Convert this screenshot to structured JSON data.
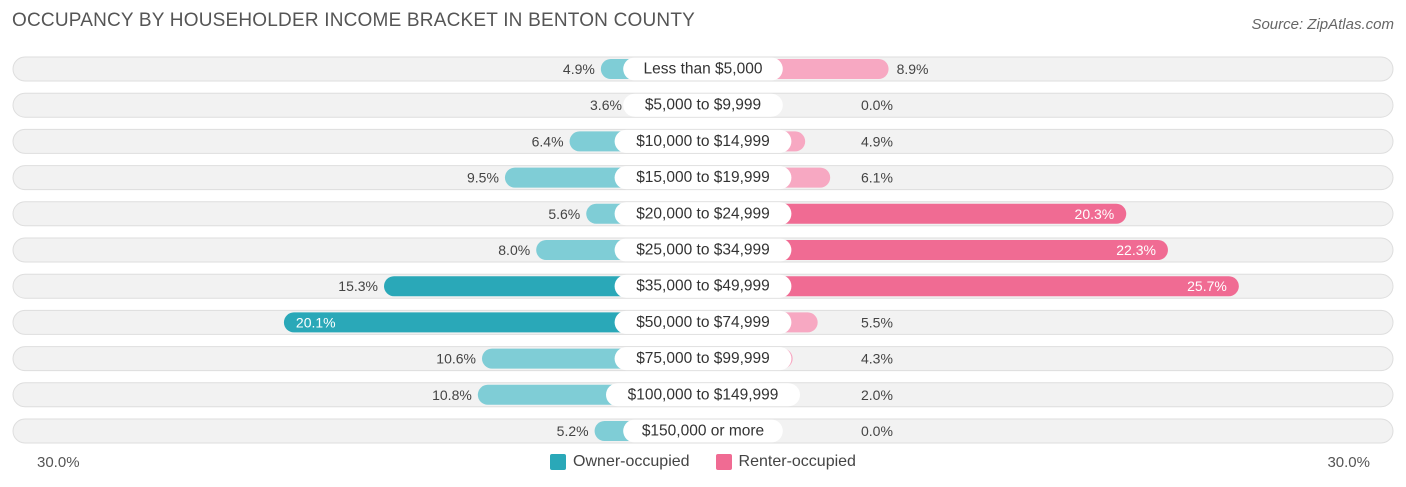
{
  "header": {
    "title": "OCCUPANCY BY HOUSEHOLDER INCOME BRACKET IN BENTON COUNTY",
    "source": "Source: ZipAtlas.com"
  },
  "colors": {
    "owner": "#2aa8b8",
    "owner_light": "#7fcdd6",
    "renter": "#f06b93",
    "renter_light": "#f7a8c2"
  },
  "chart_data": {
    "type": "bar",
    "orientation": "horizontal-diverging",
    "title": "OCCUPANCY BY HOUSEHOLDER INCOME BRACKET IN BENTON COUNTY",
    "categories": [
      "Less than $5,000",
      "$5,000 to $9,999",
      "$10,000 to $14,999",
      "$15,000 to $19,999",
      "$20,000 to $24,999",
      "$25,000 to $34,999",
      "$35,000 to $49,999",
      "$50,000 to $74,999",
      "$75,000 to $99,999",
      "$100,000 to $149,999",
      "$150,000 or more"
    ],
    "series": [
      {
        "name": "Owner-occupied",
        "values": [
          4.9,
          3.6,
          6.4,
          9.5,
          5.6,
          8.0,
          15.3,
          20.1,
          10.6,
          10.8,
          5.2
        ],
        "labels": [
          "4.9%",
          "3.6%",
          "6.4%",
          "9.5%",
          "5.6%",
          "8.0%",
          "15.3%",
          "20.1%",
          "10.6%",
          "10.8%",
          "5.2%"
        ]
      },
      {
        "name": "Renter-occupied",
        "values": [
          8.9,
          0.0,
          4.9,
          6.1,
          20.3,
          22.3,
          25.7,
          5.5,
          4.3,
          2.0,
          0.0
        ],
        "labels": [
          "8.9%",
          "0.0%",
          "4.9%",
          "6.1%",
          "20.3%",
          "22.3%",
          "25.7%",
          "5.5%",
          "4.3%",
          "2.0%",
          "0.0%"
        ]
      }
    ],
    "axis": {
      "min_label": "30.0%",
      "max_label": "30.0%",
      "range": [
        -30,
        30
      ]
    },
    "legend": [
      "Owner-occupied",
      "Renter-occupied"
    ],
    "legend_position": "bottom-center"
  }
}
